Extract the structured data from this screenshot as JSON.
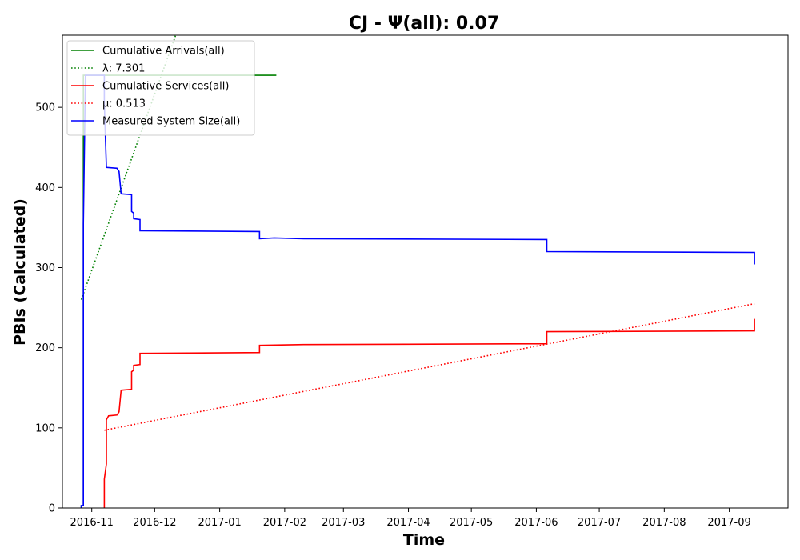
{
  "chart_data": {
    "type": "line",
    "title": "CJ -  Ψ(all): 0.07",
    "xlabel": "Time",
    "ylabel": "PBIs (Calculated)",
    "ylim": [
      0,
      590
    ],
    "xlim": [
      "2016-10-18",
      "2017-09-29"
    ],
    "x_ticks": [
      "2016-11-01",
      "2016-12-01",
      "2017-01-01",
      "2017-02-01",
      "2017-03-01",
      "2017-04-01",
      "2017-05-01",
      "2017-06-01",
      "2017-07-01",
      "2017-08-01",
      "2017-09-01"
    ],
    "x_tick_labels": [
      "2016-11",
      "2016-12",
      "2017-01",
      "2017-02",
      "2017-03",
      "2017-04",
      "2017-05",
      "2017-06",
      "2017-07",
      "2017-08",
      "2017-09"
    ],
    "y_ticks": [
      0,
      100,
      200,
      300,
      400,
      500
    ],
    "grid": false,
    "legend_position": "top-left",
    "series": [
      {
        "name": "Cumulative Arrivals(all)",
        "color": "#008000",
        "style": "solid",
        "points": [
          [
            "2016-10-27",
            0
          ],
          [
            "2016-10-27",
            3
          ],
          [
            "2016-10-28",
            3
          ],
          [
            "2016-10-28",
            350
          ],
          [
            "2016-10-28",
            540
          ],
          [
            "2016-11-05",
            540
          ],
          [
            "2016-12-01",
            540
          ],
          [
            "2017-01-01",
            540
          ],
          [
            "2017-01-28",
            540
          ]
        ]
      },
      {
        "name": "λ: 7.301",
        "color": "#008000",
        "style": "dotted",
        "points": [
          [
            "2016-10-27",
            260
          ],
          [
            "2016-12-11",
            590
          ]
        ]
      },
      {
        "name": "Cumulative Services(all)",
        "color": "#ff0000",
        "style": "solid",
        "points": [
          [
            "2016-11-07",
            0
          ],
          [
            "2016-11-07",
            36
          ],
          [
            "2016-11-08",
            55
          ],
          [
            "2016-11-08",
            110
          ],
          [
            "2016-11-09",
            115
          ],
          [
            "2016-11-13",
            116
          ],
          [
            "2016-11-14",
            120
          ],
          [
            "2016-11-15",
            147
          ],
          [
            "2016-11-20",
            148
          ],
          [
            "2016-11-20",
            170
          ],
          [
            "2016-11-21",
            172
          ],
          [
            "2016-11-21",
            178
          ],
          [
            "2016-11-24",
            179
          ],
          [
            "2016-11-24",
            193
          ],
          [
            "2017-01-20",
            194
          ],
          [
            "2017-01-20",
            203
          ],
          [
            "2017-02-10",
            204
          ],
          [
            "2017-06-06",
            205
          ],
          [
            "2017-06-06",
            220
          ],
          [
            "2017-09-13",
            221
          ],
          [
            "2017-09-13",
            236
          ]
        ]
      },
      {
        "name": "μ: 0.513",
        "color": "#ff0000",
        "style": "dotted",
        "points": [
          [
            "2016-11-07",
            97
          ],
          [
            "2017-09-13",
            255
          ]
        ]
      },
      {
        "name": "Measured System Size(all)",
        "color": "#0000ff",
        "style": "solid",
        "points": [
          [
            "2016-10-27",
            0
          ],
          [
            "2016-10-27",
            3
          ],
          [
            "2016-10-28",
            3
          ],
          [
            "2016-10-28",
            355
          ],
          [
            "2016-10-29",
            540
          ],
          [
            "2016-11-07",
            540
          ],
          [
            "2016-11-07",
            505
          ],
          [
            "2016-11-08",
            425
          ],
          [
            "2016-11-13",
            424
          ],
          [
            "2016-11-14",
            420
          ],
          [
            "2016-11-15",
            392
          ],
          [
            "2016-11-20",
            391
          ],
          [
            "2016-11-20",
            370
          ],
          [
            "2016-11-21",
            368
          ],
          [
            "2016-11-21",
            361
          ],
          [
            "2016-11-24",
            360
          ],
          [
            "2016-11-24",
            346
          ],
          [
            "2017-01-20",
            345
          ],
          [
            "2017-01-20",
            336
          ],
          [
            "2017-01-27",
            337
          ],
          [
            "2017-02-10",
            336
          ],
          [
            "2017-06-06",
            335
          ],
          [
            "2017-06-06",
            320
          ],
          [
            "2017-09-13",
            319
          ],
          [
            "2017-09-13",
            304
          ]
        ]
      }
    ]
  }
}
